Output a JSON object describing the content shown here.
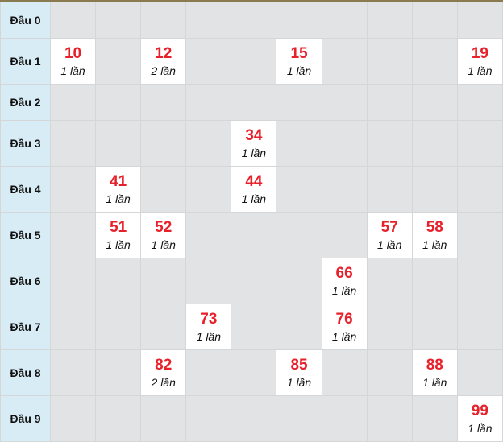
{
  "colors": {
    "number": "#e8202a",
    "header_bg": "#d8ecf6",
    "empty_bg": "#e2e3e5",
    "filled_bg": "#ffffff"
  },
  "rows": [
    {
      "label": "Đầu 0",
      "cells": {}
    },
    {
      "label": "Đầu 1",
      "cells": {
        "0": {
          "number": "10",
          "count": "1 lần"
        },
        "2": {
          "number": "12",
          "count": "2 lần"
        },
        "5": {
          "number": "15",
          "count": "1 lần"
        },
        "9": {
          "number": "19",
          "count": "1 lần"
        }
      }
    },
    {
      "label": "Đầu 2",
      "cells": {}
    },
    {
      "label": "Đầu 3",
      "cells": {
        "4": {
          "number": "34",
          "count": "1 lần"
        }
      }
    },
    {
      "label": "Đầu 4",
      "cells": {
        "1": {
          "number": "41",
          "count": "1 lần"
        },
        "4": {
          "number": "44",
          "count": "1 lần"
        }
      }
    },
    {
      "label": "Đầu 5",
      "cells": {
        "1": {
          "number": "51",
          "count": "1 lần"
        },
        "2": {
          "number": "52",
          "count": "1 lần"
        },
        "7": {
          "number": "57",
          "count": "1 lần"
        },
        "8": {
          "number": "58",
          "count": "1 lần"
        }
      }
    },
    {
      "label": "Đầu 6",
      "cells": {
        "6": {
          "number": "66",
          "count": "1 lần"
        }
      }
    },
    {
      "label": "Đầu 7",
      "cells": {
        "3": {
          "number": "73",
          "count": "1 lần"
        },
        "6": {
          "number": "76",
          "count": "1 lần"
        }
      }
    },
    {
      "label": "Đầu 8",
      "cells": {
        "2": {
          "number": "82",
          "count": "2 lần"
        },
        "5": {
          "number": "85",
          "count": "1 lần"
        },
        "8": {
          "number": "88",
          "count": "1 lần"
        }
      }
    },
    {
      "label": "Đầu 9",
      "cells": {
        "9": {
          "number": "99",
          "count": "1 lần"
        }
      }
    }
  ]
}
